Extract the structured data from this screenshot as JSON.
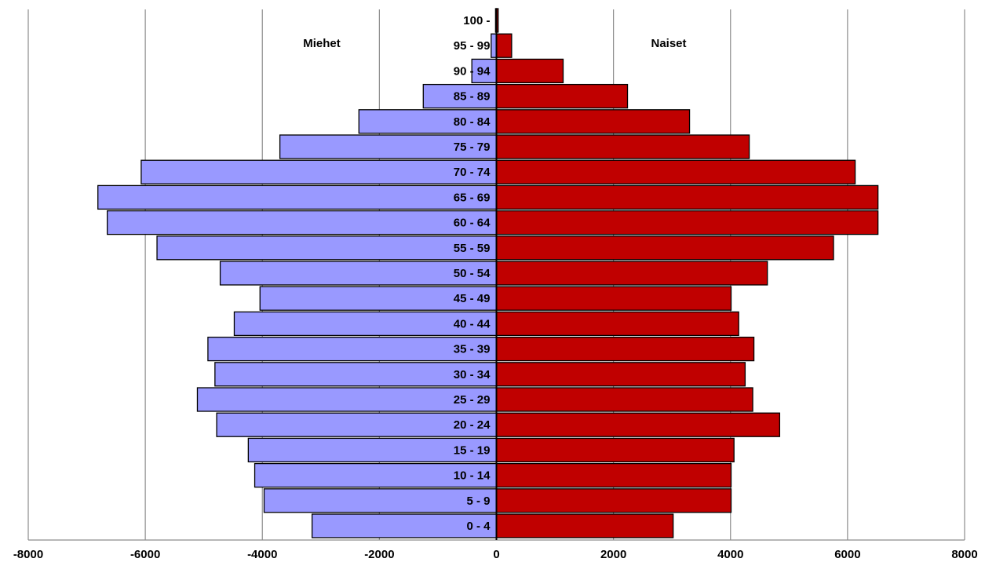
{
  "chart_data": {
    "type": "bar",
    "orientation": "horizontal",
    "layout": "population-pyramid",
    "categories": [
      "0 - 4",
      "5 - 9",
      "10 - 14",
      "15 - 19",
      "20 - 24",
      "25 - 29",
      "30 - 34",
      "35 - 39",
      "40 - 44",
      "45 - 49",
      "50 - 54",
      "55 - 59",
      "60 - 64",
      "65 - 69",
      "70 - 74",
      "75 - 79",
      "80 - 84",
      "85 - 89",
      "90 - 94",
      "95 - 99",
      "100 -"
    ],
    "series": [
      {
        "name": "Miehet",
        "color": "#9999ff",
        "values": [
          -3150,
          -3970,
          -4130,
          -4240,
          -4780,
          -5110,
          -4810,
          -4930,
          -4480,
          -4040,
          -4720,
          -5800,
          -6650,
          -6810,
          -6070,
          -3700,
          -2350,
          -1250,
          -420,
          -90,
          -15
        ]
      },
      {
        "name": "Naiset",
        "color": "#c00000",
        "values": [
          3020,
          4010,
          4010,
          4060,
          4840,
          4380,
          4250,
          4400,
          4140,
          4010,
          4630,
          5760,
          6520,
          6520,
          6130,
          4320,
          3300,
          2240,
          1140,
          260,
          30
        ]
      }
    ],
    "xlim": [
      -8000,
      8000
    ],
    "xticks": [
      -8000,
      -6000,
      -4000,
      -2000,
      0,
      2000,
      4000,
      6000,
      8000
    ],
    "grid": true,
    "legend": "inline-top"
  }
}
